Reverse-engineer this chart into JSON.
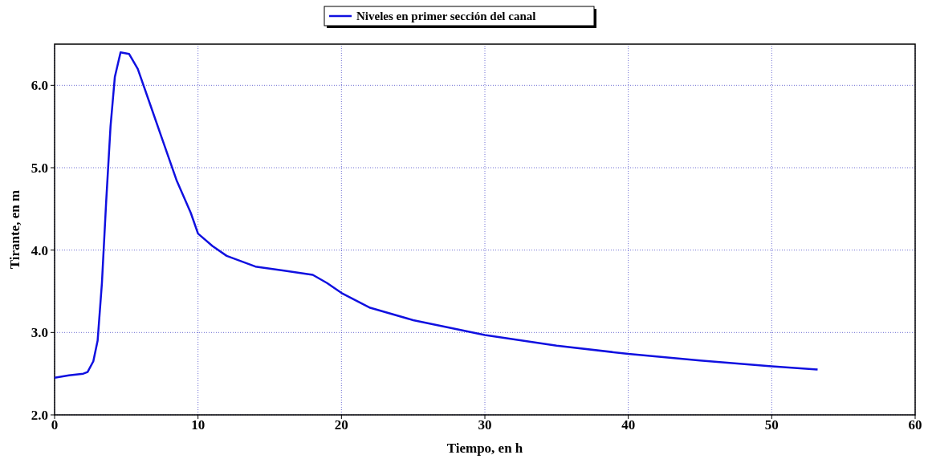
{
  "chart_data": {
    "type": "line",
    "xlabel": "Tiempo, en h",
    "ylabel": "Tirante, en m",
    "xlim": [
      0,
      60
    ],
    "xticks": [
      0,
      10,
      20,
      30,
      40,
      50,
      60
    ],
    "ylim": [
      2.0,
      6.5
    ],
    "yticks": [
      {
        "value": 2,
        "label": "2.0"
      },
      {
        "value": 3,
        "label": "3.0"
      },
      {
        "value": 4,
        "label": "4.0"
      },
      {
        "value": 5,
        "label": "5.0"
      },
      {
        "value": 6,
        "label": "6.0"
      }
    ],
    "grid": true,
    "legend": "top",
    "line_style": "solid",
    "marker": "none",
    "series": [
      {
        "name": "Niveles en primer sección del canal",
        "color": "#1010e0",
        "x": [
          0,
          1,
          2,
          2.3,
          2.7,
          3.0,
          3.3,
          3.6,
          3.9,
          4.2,
          4.6,
          5.2,
          5.8,
          6.5,
          7.5,
          8.5,
          9.5,
          10,
          11,
          12,
          14,
          16,
          18,
          19,
          20,
          22,
          25,
          30,
          35,
          40,
          45,
          50,
          53.2
        ],
        "values": [
          2.45,
          2.48,
          2.5,
          2.52,
          2.65,
          2.9,
          3.6,
          4.6,
          5.5,
          6.1,
          6.4,
          6.38,
          6.2,
          5.85,
          5.35,
          4.85,
          4.45,
          4.2,
          4.05,
          3.93,
          3.8,
          3.75,
          3.7,
          3.6,
          3.48,
          3.3,
          3.15,
          2.97,
          2.84,
          2.74,
          2.66,
          2.59,
          2.55
        ]
      }
    ]
  }
}
